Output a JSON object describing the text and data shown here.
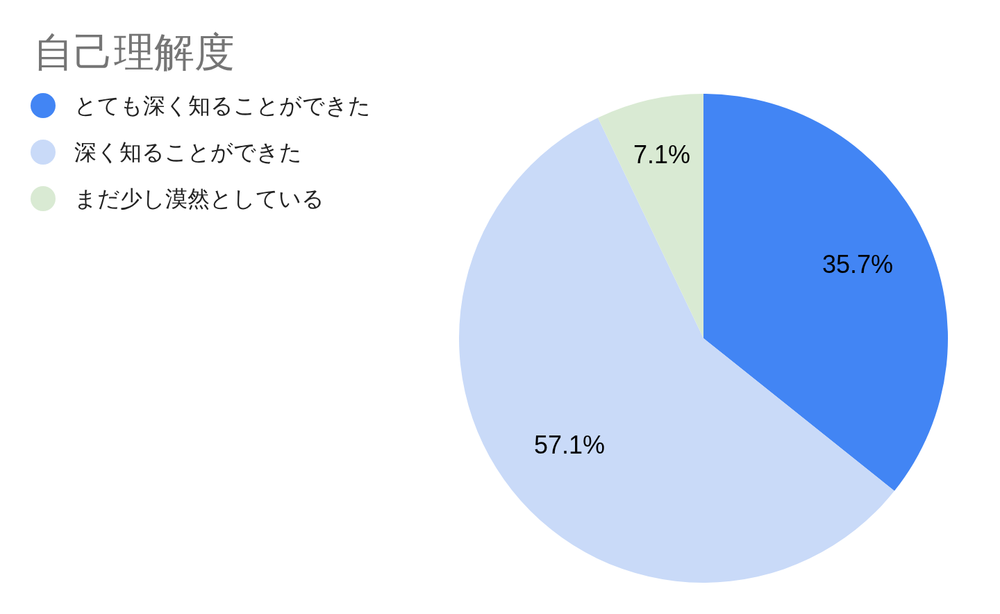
{
  "chart_data": {
    "type": "pie",
    "title": "自己理解度",
    "categories": [
      "とても深く知ることができた",
      "深く知ることができた",
      "まだ少し漠然としている"
    ],
    "values": [
      35.7,
      57.1,
      7.1
    ],
    "colors": [
      "#4285f4",
      "#c9daf8",
      "#d9ead3"
    ],
    "value_labels": [
      "35.7%",
      "57.1%",
      "7.1%"
    ],
    "legend": "top left"
  }
}
